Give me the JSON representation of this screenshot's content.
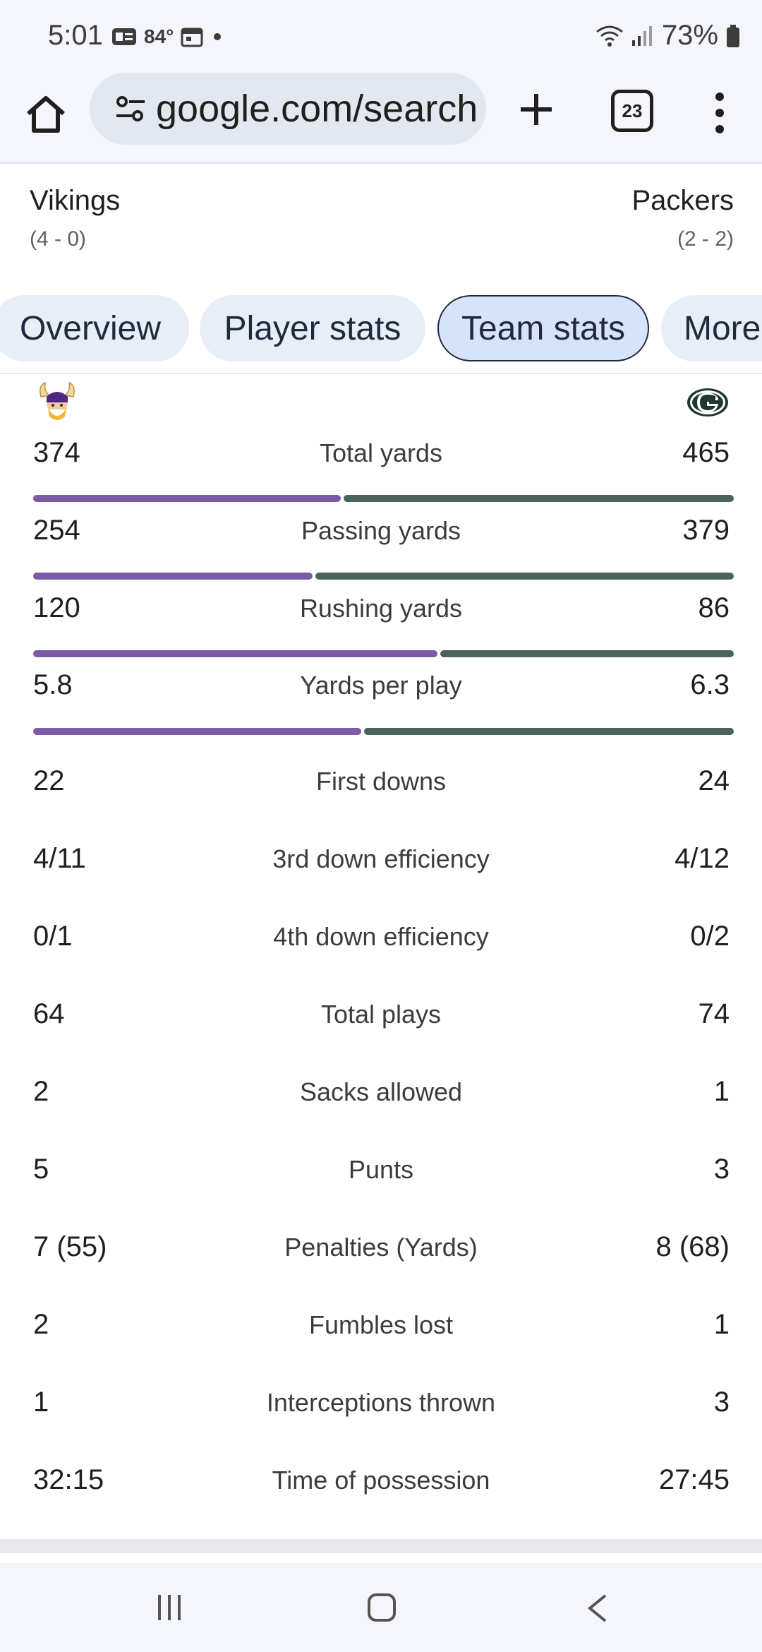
{
  "status_bar": {
    "time": "5:01",
    "temperature": "84°",
    "battery": "73%"
  },
  "browser": {
    "url": "google.com/search",
    "tab_count": "23"
  },
  "teams": {
    "left": {
      "name": "Vikings",
      "record": "(4 - 0)"
    },
    "right": {
      "name": "Packers",
      "record": "(2 - 2)"
    }
  },
  "tabs": [
    {
      "label": "Overview"
    },
    {
      "label": "Player stats"
    },
    {
      "label": "Team stats"
    },
    {
      "label": "More"
    }
  ],
  "colors": {
    "vikings": "#7b5aa6",
    "packers": "#4a6558"
  },
  "stats": [
    {
      "label": "Total yards",
      "left": "374",
      "right": "465",
      "left_share": 0.446
    },
    {
      "label": "Passing yards",
      "left": "254",
      "right": "379",
      "left_share": 0.401
    },
    {
      "label": "Rushing yards",
      "left": "120",
      "right": "86",
      "left_share": 0.583
    },
    {
      "label": "Yards per play",
      "left": "5.8",
      "right": "6.3",
      "left_share": 0.479
    },
    {
      "label": "First downs",
      "left": "22",
      "right": "24"
    },
    {
      "label": "3rd down efficiency",
      "left": "4/11",
      "right": "4/12"
    },
    {
      "label": "4th down efficiency",
      "left": "0/1",
      "right": "0/2"
    },
    {
      "label": "Total plays",
      "left": "64",
      "right": "74"
    },
    {
      "label": "Sacks allowed",
      "left": "2",
      "right": "1"
    },
    {
      "label": "Punts",
      "left": "5",
      "right": "3"
    },
    {
      "label": "Penalties (Yards)",
      "left": "7 (55)",
      "right": "8 (68)"
    },
    {
      "label": "Fumbles lost",
      "left": "2",
      "right": "1"
    },
    {
      "label": "Interceptions thrown",
      "left": "1",
      "right": "3"
    },
    {
      "label": "Time of possession",
      "left": "32:15",
      "right": "27:45"
    }
  ]
}
